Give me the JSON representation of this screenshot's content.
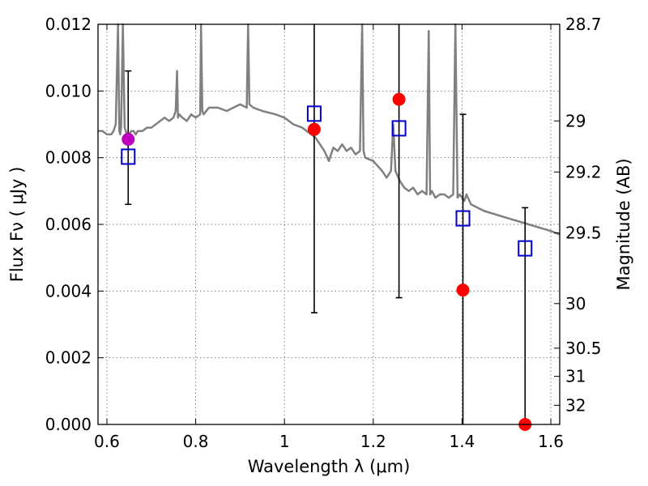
{
  "chart_data": {
    "type": "scatter",
    "xlabel": "Wavelength  λ (μm)",
    "ylabel": "Flux  Fν  ( μJy )",
    "ylabel_right": "Magnitude (AB)",
    "xlim": [
      0.58,
      1.62
    ],
    "ylim": [
      0.0,
      0.012
    ],
    "grid": true,
    "x_ticks": [
      {
        "value": 0.6,
        "label": "0.6"
      },
      {
        "value": 0.8,
        "label": "0.8"
      },
      {
        "value": 1.0,
        "label": "1"
      },
      {
        "value": 1.2,
        "label": "1.2"
      },
      {
        "value": 1.4,
        "label": "1.4"
      },
      {
        "value": 1.6,
        "label": "1.6"
      }
    ],
    "y_ticks": [
      {
        "value": 0.0,
        "label": "0.000"
      },
      {
        "value": 0.002,
        "label": "0.002"
      },
      {
        "value": 0.004,
        "label": "0.004"
      },
      {
        "value": 0.006,
        "label": "0.006"
      },
      {
        "value": 0.008,
        "label": "0.008"
      },
      {
        "value": 0.01,
        "label": "0.010"
      },
      {
        "value": 0.012,
        "label": "0.012"
      }
    ],
    "mag_ticks": [
      {
        "value": 28.7,
        "label": "28.7"
      },
      {
        "value": 29.0,
        "label": "29"
      },
      {
        "value": 29.2,
        "label": "29.2"
      },
      {
        "value": 29.5,
        "label": "29.5"
      },
      {
        "value": 30.0,
        "label": "30"
      },
      {
        "value": 30.5,
        "label": "30.5"
      },
      {
        "value": 31.0,
        "label": "31"
      },
      {
        "value": 32.0,
        "label": "32"
      }
    ],
    "colors": {
      "spectrum": "#808080",
      "observed": "#ff0000",
      "observed_first": "#bf00bf",
      "model": "#0000cc",
      "errorbar": "#000000",
      "grid": "#7f7f7f"
    },
    "spectrum": {
      "x": [
        0.58,
        0.59,
        0.6,
        0.61,
        0.615,
        0.62,
        0.625,
        0.628,
        0.63,
        0.632,
        0.636,
        0.64,
        0.645,
        0.65,
        0.655,
        0.66,
        0.665,
        0.67,
        0.68,
        0.69,
        0.7,
        0.71,
        0.72,
        0.73,
        0.74,
        0.75,
        0.755,
        0.758,
        0.76,
        0.763,
        0.77,
        0.78,
        0.79,
        0.8,
        0.81,
        0.812,
        0.815,
        0.818,
        0.83,
        0.85,
        0.87,
        0.9,
        0.915,
        0.918,
        0.921,
        0.93,
        0.95,
        0.98,
        1.0,
        1.02,
        1.04,
        1.06,
        1.07,
        1.08,
        1.09,
        1.1,
        1.11,
        1.12,
        1.13,
        1.14,
        1.15,
        1.16,
        1.17,
        1.175,
        1.178,
        1.182,
        1.2,
        1.22,
        1.23,
        1.24,
        1.245,
        1.25,
        1.26,
        1.27,
        1.28,
        1.29,
        1.3,
        1.31,
        1.32,
        1.325,
        1.328,
        1.332,
        1.34,
        1.35,
        1.36,
        1.37,
        1.38,
        1.385,
        1.39,
        1.395,
        1.4,
        1.405,
        1.41,
        1.42,
        1.45,
        1.5,
        1.55,
        1.6,
        1.62
      ],
      "y": [
        0.0088,
        0.0088,
        0.0087,
        0.0087,
        0.0088,
        0.009,
        0.012,
        0.0088,
        0.0087,
        0.0089,
        0.012,
        0.0089,
        0.0087,
        0.0087,
        0.0088,
        0.0088,
        0.0087,
        0.0088,
        0.0088,
        0.0089,
        0.0089,
        0.009,
        0.0091,
        0.0092,
        0.0091,
        0.0092,
        0.0094,
        0.0106,
        0.0092,
        0.0093,
        0.0092,
        0.0091,
        0.0093,
        0.0092,
        0.0093,
        0.012,
        0.0094,
        0.0093,
        0.0095,
        0.0095,
        0.0094,
        0.0096,
        0.0095,
        0.012,
        0.0096,
        0.0095,
        0.0094,
        0.0093,
        0.0092,
        0.009,
        0.0089,
        0.0087,
        0.0086,
        0.0084,
        0.0082,
        0.0079,
        0.0083,
        0.0082,
        0.0084,
        0.0082,
        0.0083,
        0.0081,
        0.0082,
        0.012,
        0.0082,
        0.008,
        0.0079,
        0.0076,
        0.0074,
        0.0076,
        0.009,
        0.0076,
        0.0073,
        0.0071,
        0.007,
        0.0071,
        0.0069,
        0.007,
        0.0069,
        0.0118,
        0.0069,
        0.007,
        0.0068,
        0.0069,
        0.0069,
        0.0068,
        0.0069,
        0.012,
        0.0068,
        0.0069,
        0.0068,
        0.0067,
        0.0069,
        0.0066,
        0.0064,
        0.0062,
        0.006,
        0.0058,
        0.0057
      ]
    },
    "observed": {
      "x": [
        0.648,
        1.067,
        1.258,
        1.402,
        1.542
      ],
      "y": [
        0.00855,
        0.00885,
        0.00975,
        0.00403,
        0.0
      ]
    },
    "model": {
      "x": [
        0.648,
        1.067,
        1.258,
        1.402,
        1.542
      ],
      "y": [
        0.00803,
        0.00932,
        0.00888,
        0.00618,
        0.00528
      ]
    },
    "errorbars": {
      "x": [
        0.648,
        1.067,
        1.258,
        1.402,
        1.542
      ],
      "y": [
        0.00855,
        0.00885,
        0.00975,
        0.00403,
        0.0
      ],
      "low": [
        0.0066,
        0.00335,
        0.0038,
        0.0,
        0.0
      ],
      "high": [
        0.0106,
        0.012,
        0.012,
        0.0093,
        0.0065
      ]
    }
  }
}
